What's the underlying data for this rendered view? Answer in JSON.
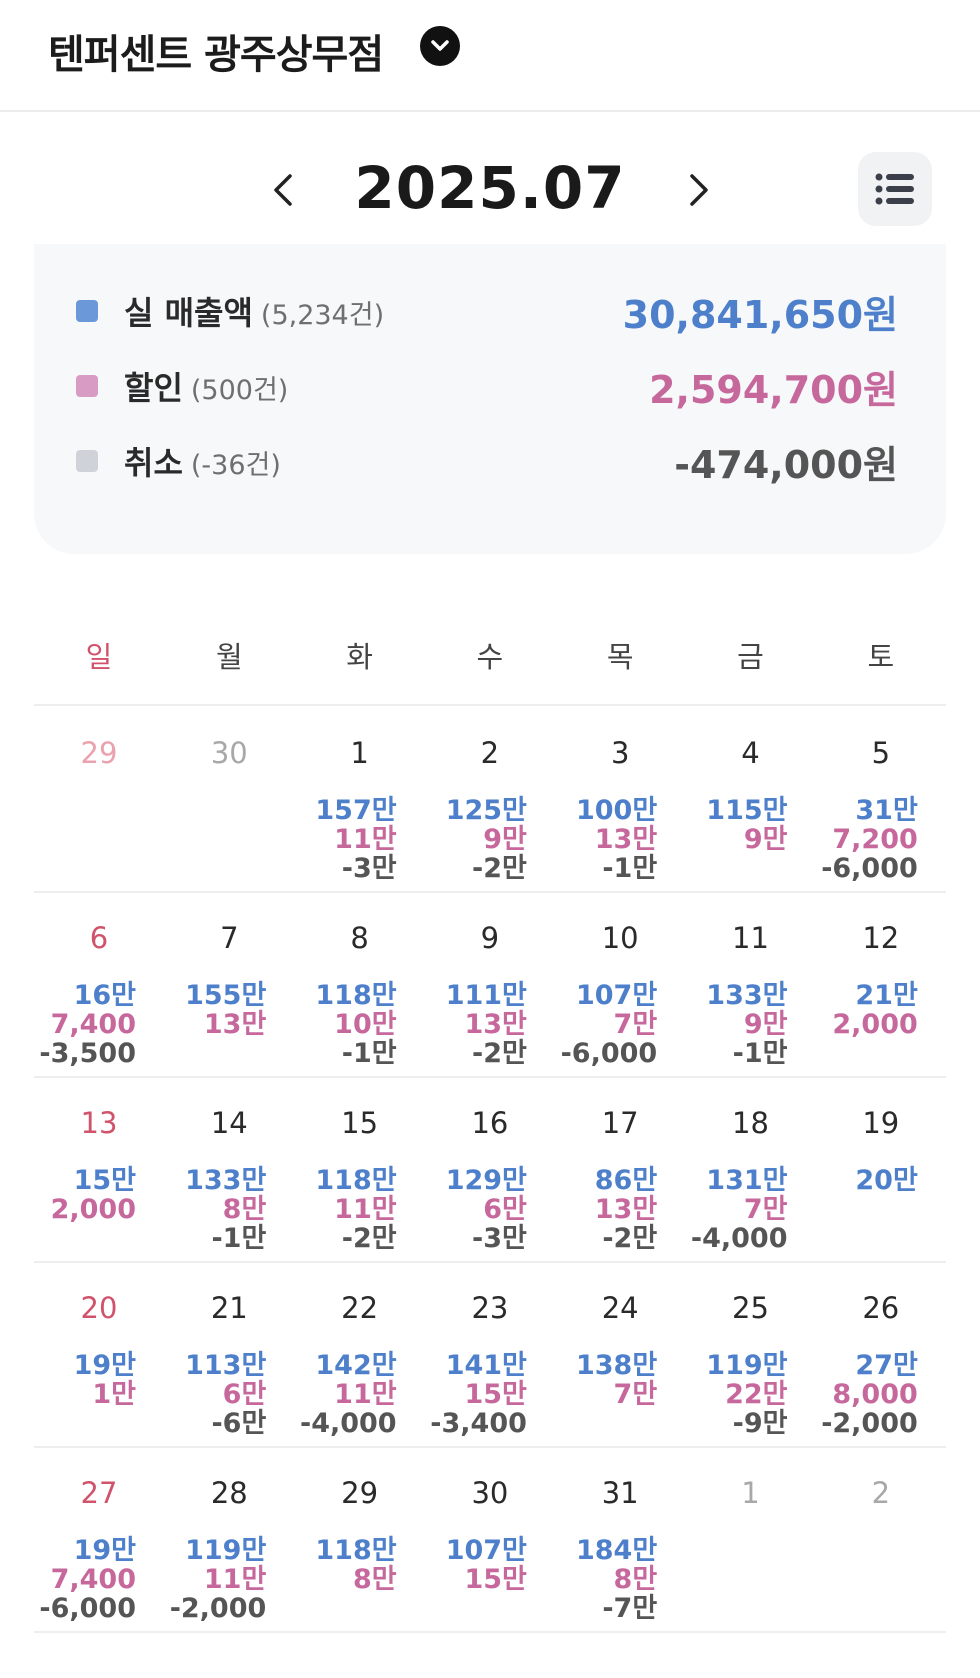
{
  "header": {
    "store_name": "텐퍼센트 광주상무점"
  },
  "month": {
    "title": "2025.07"
  },
  "summary": [
    {
      "label": "실 매출액",
      "count": "(5,234건)",
      "value": "30,841,650원",
      "color": "#6a98d9",
      "value_color": "#4d7fcb"
    },
    {
      "label": "할인",
      "count": "(500건)",
      "value": "2,594,700원",
      "color": "#d89cc4",
      "value_color": "#c7689d"
    },
    {
      "label": "취소",
      "count": "(-36건)",
      "value": "-474,000원",
      "color": "#cfd3d9",
      "value_color": "#555555"
    }
  ],
  "weekdays": [
    "일",
    "월",
    "화",
    "수",
    "목",
    "금",
    "토"
  ],
  "weeks": [
    [
      {
        "day": "29",
        "other": true,
        "sales": "",
        "discount": "",
        "cancel": ""
      },
      {
        "day": "30",
        "other": true,
        "sales": "",
        "discount": "",
        "cancel": ""
      },
      {
        "day": "1",
        "sales": "157만",
        "discount": "11만",
        "cancel": "-3만"
      },
      {
        "day": "2",
        "sales": "125만",
        "discount": "9만",
        "cancel": "-2만"
      },
      {
        "day": "3",
        "sales": "100만",
        "discount": "13만",
        "cancel": "-1만"
      },
      {
        "day": "4",
        "sales": "115만",
        "discount": "9만",
        "cancel": ""
      },
      {
        "day": "5",
        "sales": "31만",
        "discount": "7,200",
        "cancel": "-6,000"
      }
    ],
    [
      {
        "day": "6",
        "sales": "16만",
        "discount": "7,400",
        "cancel": "-3,500"
      },
      {
        "day": "7",
        "sales": "155만",
        "discount": "13만",
        "cancel": ""
      },
      {
        "day": "8",
        "sales": "118만",
        "discount": "10만",
        "cancel": "-1만"
      },
      {
        "day": "9",
        "sales": "111만",
        "discount": "13만",
        "cancel": "-2만"
      },
      {
        "day": "10",
        "sales": "107만",
        "discount": "7만",
        "cancel": "-6,000"
      },
      {
        "day": "11",
        "sales": "133만",
        "discount": "9만",
        "cancel": "-1만"
      },
      {
        "day": "12",
        "sales": "21만",
        "discount": "2,000",
        "cancel": ""
      }
    ],
    [
      {
        "day": "13",
        "sales": "15만",
        "discount": "2,000",
        "cancel": ""
      },
      {
        "day": "14",
        "sales": "133만",
        "discount": "8만",
        "cancel": "-1만"
      },
      {
        "day": "15",
        "sales": "118만",
        "discount": "11만",
        "cancel": "-2만"
      },
      {
        "day": "16",
        "sales": "129만",
        "discount": "6만",
        "cancel": "-3만"
      },
      {
        "day": "17",
        "sales": "86만",
        "discount": "13만",
        "cancel": "-2만"
      },
      {
        "day": "18",
        "sales": "131만",
        "discount": "7만",
        "cancel": "-4,000"
      },
      {
        "day": "19",
        "sales": "20만",
        "discount": "",
        "cancel": ""
      }
    ],
    [
      {
        "day": "20",
        "sales": "19만",
        "discount": "1만",
        "cancel": ""
      },
      {
        "day": "21",
        "sales": "113만",
        "discount": "6만",
        "cancel": "-6만"
      },
      {
        "day": "22",
        "sales": "142만",
        "discount": "11만",
        "cancel": "-4,000"
      },
      {
        "day": "23",
        "sales": "141만",
        "discount": "15만",
        "cancel": "-3,400"
      },
      {
        "day": "24",
        "sales": "138만",
        "discount": "7만",
        "cancel": ""
      },
      {
        "day": "25",
        "sales": "119만",
        "discount": "22만",
        "cancel": "-9만"
      },
      {
        "day": "26",
        "sales": "27만",
        "discount": "8,000",
        "cancel": "-2,000"
      }
    ],
    [
      {
        "day": "27",
        "sales": "19만",
        "discount": "7,400",
        "cancel": "-6,000"
      },
      {
        "day": "28",
        "sales": "119만",
        "discount": "11만",
        "cancel": "-2,000"
      },
      {
        "day": "29",
        "sales": "118만",
        "discount": "8만",
        "cancel": ""
      },
      {
        "day": "30",
        "sales": "107만",
        "discount": "15만",
        "cancel": ""
      },
      {
        "day": "31",
        "sales": "184만",
        "discount": "8만",
        "cancel": "-7만"
      },
      {
        "day": "1",
        "other": true,
        "sales": "",
        "discount": "",
        "cancel": ""
      },
      {
        "day": "2",
        "other": true,
        "sales": "",
        "discount": "",
        "cancel": ""
      }
    ]
  ]
}
